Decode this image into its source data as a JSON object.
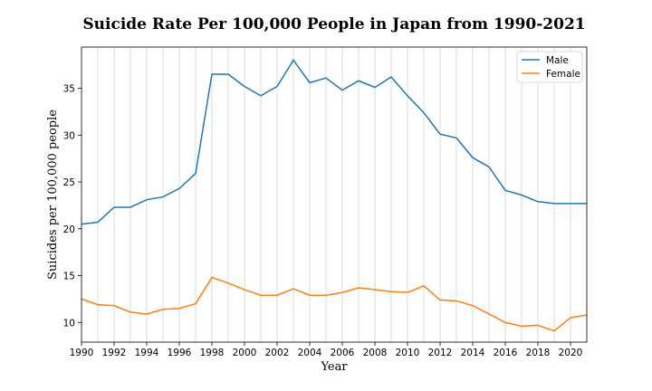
{
  "chart_data": {
    "type": "line",
    "title": "Suicide Rate Per 100,000 People in Japan from 1990-2021",
    "xlabel": "Year",
    "ylabel": "Suicides per 100,000 people",
    "xlim": [
      1990,
      2021
    ],
    "ylim": [
      7.9,
      39.4
    ],
    "xticks": [
      "1990",
      "1992",
      "1994",
      "1996",
      "1998",
      "2000",
      "2002",
      "2004",
      "2006",
      "2008",
      "2010",
      "2012",
      "2014",
      "2016",
      "2018",
      "2020"
    ],
    "yticks": [
      "10",
      "15",
      "20",
      "25",
      "30",
      "35"
    ],
    "grid": "vertical",
    "legend_position": "top-right",
    "x": [
      1990,
      1991,
      1992,
      1993,
      1994,
      1995,
      1996,
      1997,
      1998,
      1999,
      2000,
      2001,
      2002,
      2003,
      2004,
      2005,
      2006,
      2007,
      2008,
      2009,
      2010,
      2011,
      2012,
      2013,
      2014,
      2015,
      2016,
      2017,
      2018,
      2019,
      2020,
      2021
    ],
    "series": [
      {
        "name": "Male",
        "color": "#1f77b4",
        "values": [
          20.5,
          20.7,
          22.3,
          22.3,
          23.1,
          23.4,
          24.3,
          25.9,
          36.5,
          36.5,
          35.2,
          34.2,
          35.2,
          38.0,
          35.6,
          36.1,
          34.8,
          35.8,
          35.1,
          36.2,
          34.2,
          32.4,
          30.1,
          29.7,
          27.6,
          26.6,
          24.1,
          23.6,
          22.9,
          22.7,
          22.7,
          22.7
        ]
      },
      {
        "name": "Female",
        "color": "#ff7f0e",
        "values": [
          12.5,
          11.9,
          11.8,
          11.1,
          10.9,
          11.4,
          11.5,
          12.0,
          14.8,
          14.2,
          13.5,
          12.9,
          12.9,
          13.6,
          12.9,
          12.9,
          13.2,
          13.7,
          13.5,
          13.3,
          13.2,
          13.9,
          12.4,
          12.3,
          11.8,
          10.9,
          10.0,
          9.6,
          9.7,
          9.1,
          10.5,
          10.8
        ]
      }
    ]
  }
}
